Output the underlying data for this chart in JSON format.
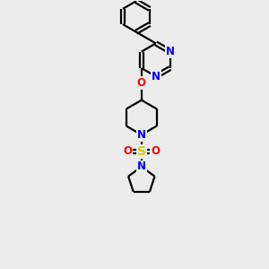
{
  "bg_color": "#ececec",
  "bond_color": "#000000",
  "N_color": "#0000ff",
  "O_color": "#ff0000",
  "S_color": "#cccc00",
  "line_width": 1.6,
  "font_size": 8.5,
  "fig_size": [
    3.0,
    3.0
  ],
  "dpi": 100,
  "xlim": [
    0,
    10
  ],
  "ylim": [
    0,
    10
  ]
}
